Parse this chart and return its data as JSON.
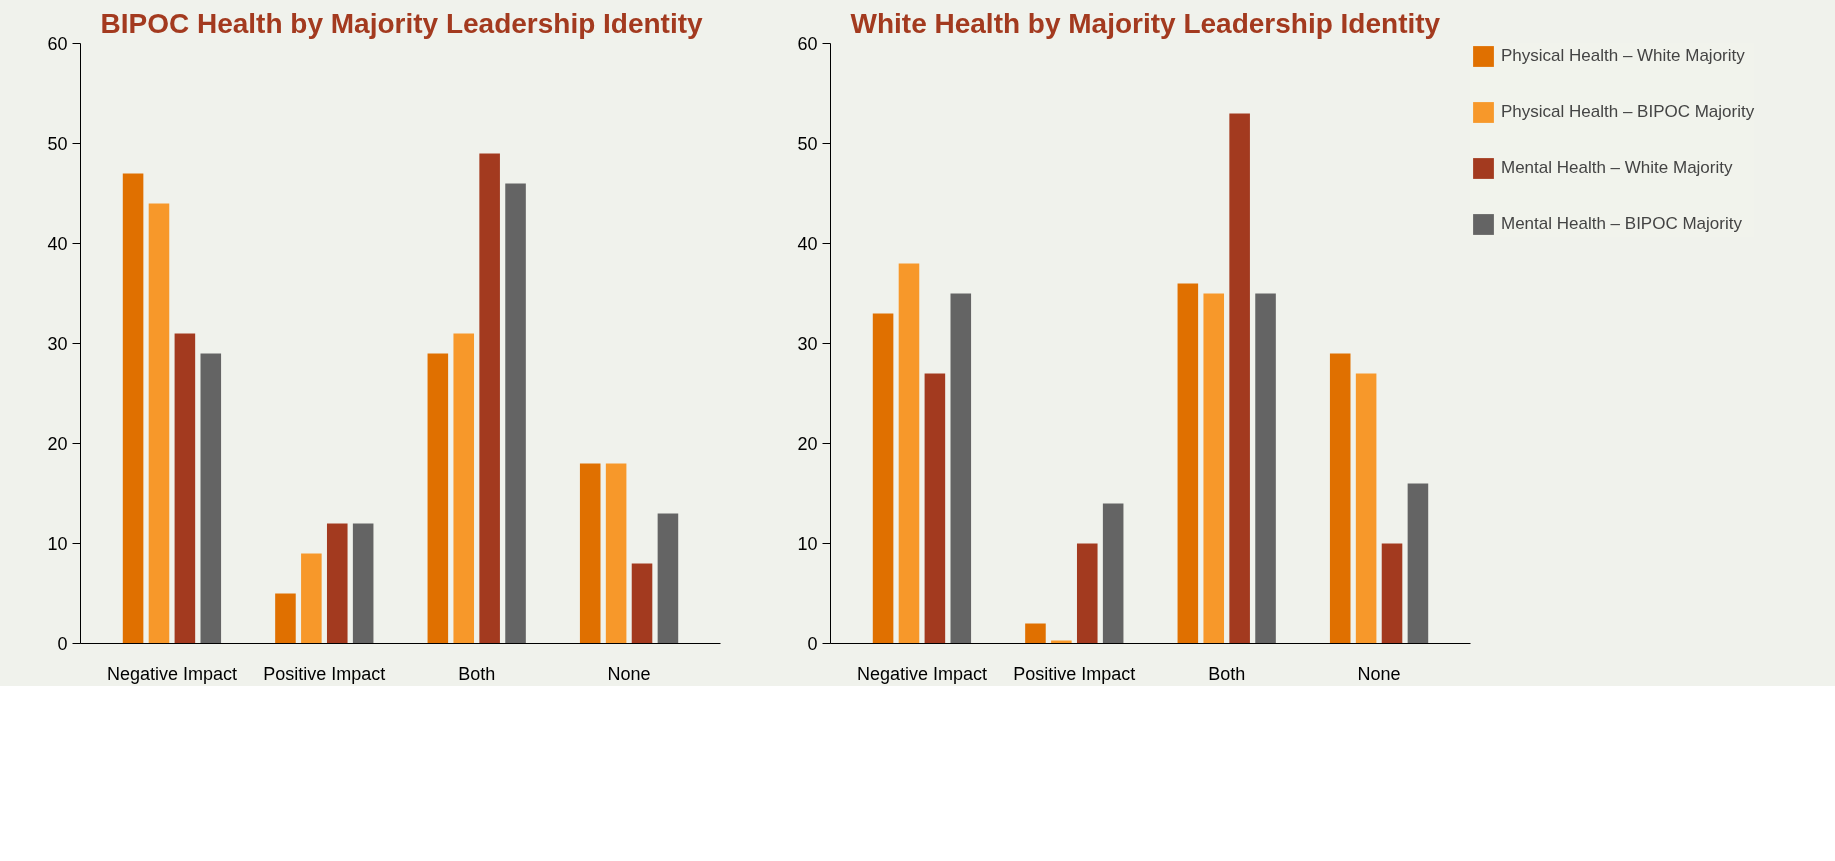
{
  "chart_data": [
    {
      "type": "bar",
      "title": "BIPOC Health by Majority Leadership Identity",
      "categories": [
        "Negative Impact",
        "Positive Impact",
        "Both",
        "None"
      ],
      "ylim": [
        0,
        60
      ],
      "yticks": [
        0,
        10,
        20,
        30,
        40,
        50,
        60
      ],
      "grid": false,
      "legend": false,
      "series": [
        {
          "color": "#e07000",
          "values": [
            47,
            5,
            29,
            18
          ]
        },
        {
          "color": "#f7982a",
          "values": [
            44,
            9,
            31,
            18
          ]
        },
        {
          "color": "#a33a1f",
          "values": [
            31,
            12,
            49,
            8
          ]
        },
        {
          "color": "#646464",
          "values": [
            29,
            12,
            46,
            13
          ]
        }
      ]
    },
    {
      "type": "bar",
      "title": "White Health by Majority Leadership Identity",
      "categories": [
        "Negative Impact",
        "Positive Impact",
        "Both",
        "None"
      ],
      "ylim": [
        0,
        60
      ],
      "yticks": [
        0,
        10,
        20,
        30,
        40,
        50,
        60
      ],
      "grid": false,
      "legend": "right",
      "series": [
        {
          "name": "Physical Health – White Majority",
          "color": "#e07000",
          "values": [
            33,
            2,
            36,
            29
          ]
        },
        {
          "name": "Physical Health – BIPOC Majority",
          "color": "#f7982a",
          "values": [
            38,
            0.3,
            35,
            27
          ]
        },
        {
          "name": "Mental Health – White Majority",
          "color": "#a33a1f",
          "values": [
            27,
            10,
            53,
            10
          ]
        },
        {
          "name": "Mental Health – BIPOC Majority",
          "color": "#646464",
          "values": [
            35,
            14,
            35,
            16
          ]
        }
      ]
    }
  ]
}
